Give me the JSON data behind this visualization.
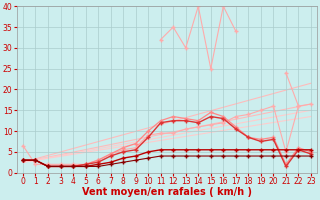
{
  "x": [
    0,
    1,
    2,
    3,
    4,
    5,
    6,
    7,
    8,
    9,
    10,
    11,
    12,
    13,
    14,
    15,
    16,
    17,
    18,
    19,
    20,
    21,
    22,
    23
  ],
  "series": [
    {
      "values": [
        null,
        null,
        null,
        null,
        null,
        null,
        null,
        null,
        null,
        null,
        null,
        32.0,
        35.0,
        30.0,
        40.0,
        25.0,
        40.0,
        34.0,
        null,
        null,
        null,
        24.0,
        16.0,
        null
      ],
      "color": "#ffaaaa",
      "lw": 0.8,
      "marker": "+",
      "ms": 3,
      "connect_gaps": false
    },
    {
      "values": [
        6.5,
        2.0,
        2.0,
        2.0,
        2.0,
        2.0,
        3.0,
        4.5,
        5.5,
        6.0,
        9.0,
        9.5,
        9.5,
        10.5,
        11.0,
        11.5,
        12.0,
        13.5,
        14.0,
        15.0,
        16.0,
        5.0,
        16.0,
        16.5
      ],
      "color": "#ffaaaa",
      "lw": 0.8,
      "marker": "+",
      "ms": 3,
      "connect_gaps": true
    },
    {
      "values": [
        3.0,
        3.0,
        1.5,
        1.5,
        1.5,
        2.0,
        3.0,
        4.5,
        6.0,
        7.0,
        10.0,
        12.5,
        13.5,
        13.0,
        12.5,
        14.5,
        13.5,
        11.0,
        8.5,
        8.0,
        8.5,
        2.0,
        6.0,
        5.0
      ],
      "color": "#ff8888",
      "lw": 0.9,
      "marker": "+",
      "ms": 3,
      "connect_gaps": true
    },
    {
      "values": [
        3.0,
        3.0,
        1.5,
        1.5,
        1.5,
        2.0,
        2.5,
        4.0,
        5.0,
        5.5,
        8.5,
        12.0,
        12.5,
        12.5,
        12.0,
        13.5,
        13.0,
        10.5,
        8.5,
        7.5,
        8.0,
        1.5,
        5.5,
        4.5
      ],
      "color": "#dd3333",
      "lw": 1.0,
      "marker": "+",
      "ms": 3,
      "connect_gaps": true
    },
    {
      "values": [
        3.0,
        3.0,
        1.5,
        1.5,
        1.5,
        1.5,
        2.0,
        2.5,
        3.5,
        4.0,
        5.0,
        5.5,
        5.5,
        5.5,
        5.5,
        5.5,
        5.5,
        5.5,
        5.5,
        5.5,
        5.5,
        5.5,
        5.5,
        5.5
      ],
      "color": "#bb0000",
      "lw": 1.0,
      "marker": "+",
      "ms": 3,
      "connect_gaps": true
    },
    {
      "values": [
        3.0,
        3.0,
        1.5,
        1.5,
        1.5,
        1.5,
        1.5,
        2.0,
        2.5,
        3.0,
        3.5,
        4.0,
        4.0,
        4.0,
        4.0,
        4.0,
        4.0,
        4.0,
        4.0,
        4.0,
        4.0,
        4.0,
        4.0,
        4.0
      ],
      "color": "#880000",
      "lw": 0.8,
      "marker": "+",
      "ms": 3,
      "connect_gaps": true
    }
  ],
  "trend_lines": [
    {
      "x0": 0,
      "y0": 2.5,
      "x1": 23,
      "y1": 21.5,
      "color": "#ffbbbb",
      "lw": 0.8
    },
    {
      "x0": 0,
      "y0": 2.5,
      "x1": 23,
      "y1": 16.5,
      "color": "#ffbbbb",
      "lw": 0.8
    },
    {
      "x0": 0,
      "y0": 2.5,
      "x1": 23,
      "y1": 15.0,
      "color": "#ffcccc",
      "lw": 0.8
    },
    {
      "x0": 0,
      "y0": 2.5,
      "x1": 23,
      "y1": 13.5,
      "color": "#ffcccc",
      "lw": 0.8
    }
  ],
  "xlabel": "Vent moyen/en rafales ( km/h )",
  "xlim": [
    -0.5,
    23.5
  ],
  "ylim": [
    0,
    40
  ],
  "yticks": [
    0,
    5,
    10,
    15,
    20,
    25,
    30,
    35,
    40
  ],
  "xticks": [
    0,
    1,
    2,
    3,
    4,
    5,
    6,
    7,
    8,
    9,
    10,
    11,
    12,
    13,
    14,
    15,
    16,
    17,
    18,
    19,
    20,
    21,
    22,
    23
  ],
  "bg_color": "#cceeee",
  "grid_color": "#aacccc",
  "tick_label_color": "#cc0000",
  "xlabel_color": "#cc0000",
  "xlabel_fontsize": 7,
  "tick_fontsize": 5.5
}
